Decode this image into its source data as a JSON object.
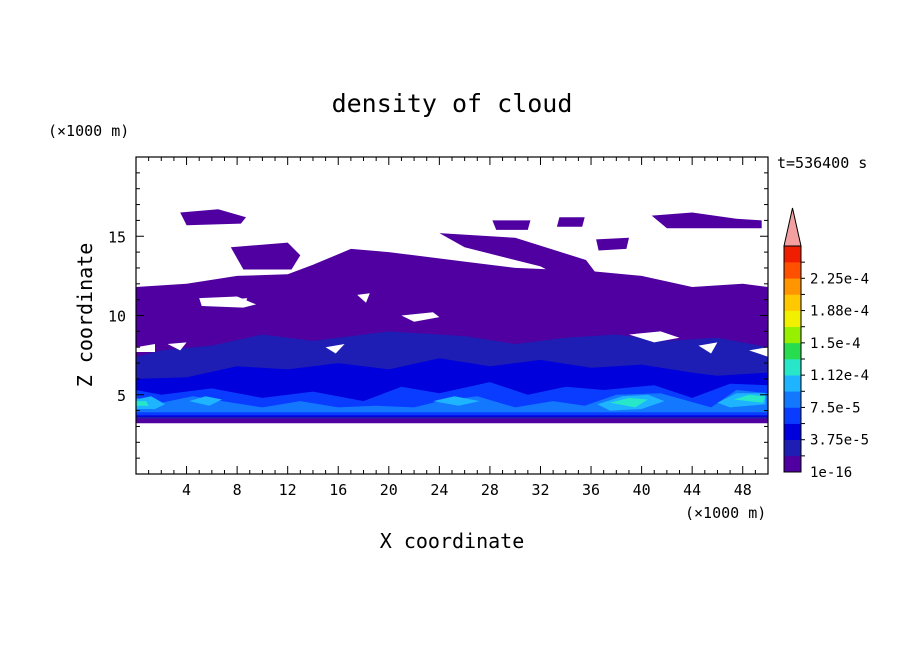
{
  "chart_data": {
    "type": "heatmap",
    "title": "density of cloud",
    "xlabel": "X coordinate",
    "ylabel": "Z coordinate",
    "x_unit": "(×1000 m)",
    "y_unit": "(×1000 m)",
    "time_label": "t=536400 s",
    "xlim": [
      0,
      50
    ],
    "ylim": [
      0,
      20
    ],
    "x_ticks": [
      4,
      8,
      12,
      16,
      20,
      24,
      28,
      32,
      36,
      40,
      44,
      48
    ],
    "x_tick_labels": [
      "4",
      "8",
      "12",
      "16",
      "20",
      "24",
      "28",
      "32",
      "36",
      "40",
      "44",
      "48"
    ],
    "y_ticks": [
      5,
      10,
      15
    ],
    "y_tick_labels": [
      "5",
      "10",
      "15"
    ],
    "colorbar": {
      "tick_labels": [
        "2.25e-4",
        "1.88e-4",
        "1.5e-4",
        "1.12e-4",
        "7.5e-5",
        "3.75e-5",
        "1e-16"
      ],
      "levels": [
        "1e-16",
        "1.875e-5",
        "3.75e-5",
        "5.625e-5",
        "7.5e-5",
        "9.375e-5",
        "1.12e-4",
        "1.31e-4",
        "1.5e-4",
        "1.69e-4",
        "1.88e-4",
        "2.06e-4",
        "2.25e-4",
        "2.44e-4"
      ],
      "colors": [
        "#5000a0",
        "#1e1eb4",
        "#0000dc",
        "#0a3cff",
        "#1478ff",
        "#1eb4ff",
        "#28e6c8",
        "#28dc50",
        "#96f000",
        "#f0f000",
        "#ffc800",
        "#ff9600",
        "#ff5000",
        "#f01e00"
      ],
      "over_color": "#f5a0a0"
    },
    "regions": [
      {
        "level": 0,
        "points": [
          [
            0,
            3.2
          ],
          [
            50,
            3.2
          ],
          [
            50,
            11.8
          ],
          [
            48,
            12
          ],
          [
            44,
            11.8
          ],
          [
            40,
            12.5
          ],
          [
            36,
            12.8
          ],
          [
            30,
            13
          ],
          [
            26,
            13.4
          ],
          [
            22,
            13.8
          ],
          [
            20,
            14
          ],
          [
            17,
            14.2
          ],
          [
            14,
            13.2
          ],
          [
            12,
            12.6
          ],
          [
            8,
            12.5
          ],
          [
            4,
            12
          ],
          [
            0,
            11.8
          ]
        ]
      },
      {
        "level": 0,
        "points": [
          [
            7.5,
            14.3
          ],
          [
            12,
            14.6
          ],
          [
            13,
            13.8
          ],
          [
            12.3,
            12.9
          ],
          [
            8.5,
            12.9
          ]
        ]
      },
      {
        "level": 0,
        "points": [
          [
            24,
            15.2
          ],
          [
            30,
            14.9
          ],
          [
            35.6,
            13.5
          ],
          [
            37.5,
            11.5
          ],
          [
            36.5,
            11.2
          ],
          [
            32,
            13.1
          ],
          [
            26,
            14.3
          ]
        ]
      },
      {
        "level": 0,
        "points": [
          [
            3.5,
            16.5
          ],
          [
            6.5,
            16.7
          ],
          [
            8.7,
            16.2
          ],
          [
            8.3,
            15.8
          ],
          [
            4,
            15.7
          ]
        ]
      },
      {
        "level": 0,
        "points": [
          [
            40.8,
            16.3
          ],
          [
            44,
            16.5
          ],
          [
            47.5,
            16.1
          ],
          [
            49.5,
            16
          ],
          [
            49.5,
            15.5
          ],
          [
            42,
            15.5
          ]
        ]
      },
      {
        "level": 0,
        "points": [
          [
            33.5,
            16.2
          ],
          [
            35.5,
            16.2
          ],
          [
            35.3,
            15.6
          ],
          [
            33.3,
            15.6
          ]
        ]
      },
      {
        "level": 0,
        "points": [
          [
            28.2,
            16
          ],
          [
            31.2,
            16
          ],
          [
            31,
            15.4
          ],
          [
            28.5,
            15.4
          ]
        ]
      },
      {
        "level": 0,
        "points": [
          [
            36.4,
            14.8
          ],
          [
            39,
            14.9
          ],
          [
            38.8,
            14.2
          ],
          [
            36.6,
            14.1
          ]
        ]
      },
      {
        "level": 1,
        "points": [
          [
            0,
            3.5
          ],
          [
            50,
            3.5
          ],
          [
            50,
            8
          ],
          [
            46,
            8.6
          ],
          [
            42,
            8.4
          ],
          [
            38,
            8.8
          ],
          [
            34,
            8.6
          ],
          [
            30,
            8.2
          ],
          [
            26,
            8.7
          ],
          [
            20,
            9
          ],
          [
            14,
            8.4
          ],
          [
            10,
            8.8
          ],
          [
            6,
            8.1
          ],
          [
            2,
            7.8
          ],
          [
            0,
            7.4
          ]
        ]
      },
      {
        "level": 2,
        "points": [
          [
            0,
            3.6
          ],
          [
            50,
            3.6
          ],
          [
            50,
            6.4
          ],
          [
            46,
            6.2
          ],
          [
            44,
            6.4
          ],
          [
            40,
            6.9
          ],
          [
            36,
            6.7
          ],
          [
            32,
            7.2
          ],
          [
            28,
            6.8
          ],
          [
            24,
            7.3
          ],
          [
            20,
            6.6
          ],
          [
            16,
            7
          ],
          [
            12,
            6.6
          ],
          [
            8,
            6.8
          ],
          [
            4,
            6.1
          ],
          [
            0,
            6
          ]
        ]
      },
      {
        "level": 3,
        "points": [
          [
            0,
            3.7
          ],
          [
            50,
            3.7
          ],
          [
            50,
            5.6
          ],
          [
            47,
            5.7
          ],
          [
            44,
            4.8
          ],
          [
            41,
            5.6
          ],
          [
            37,
            5.3
          ],
          [
            34,
            5.5
          ],
          [
            31,
            5
          ],
          [
            28,
            5.8
          ],
          [
            24,
            5.1
          ],
          [
            21,
            5.5
          ],
          [
            18,
            4.6
          ],
          [
            14,
            5.2
          ],
          [
            10,
            4.8
          ],
          [
            6,
            5.4
          ],
          [
            2,
            5
          ],
          [
            0,
            5.3
          ]
        ]
      },
      {
        "level": 4,
        "points": [
          [
            0,
            3.9
          ],
          [
            50,
            3.9
          ],
          [
            50,
            5.1
          ],
          [
            47.5,
            5.3
          ],
          [
            45.5,
            4.2
          ],
          [
            41.5,
            5.1
          ],
          [
            38,
            5
          ],
          [
            35.5,
            4.3
          ],
          [
            33,
            4.6
          ],
          [
            30,
            4.2
          ],
          [
            27,
            4.9
          ],
          [
            24,
            4.6
          ],
          [
            22,
            4.2
          ],
          [
            19,
            4.3
          ],
          [
            16,
            4.2
          ],
          [
            13,
            4.6
          ],
          [
            10,
            4.2
          ],
          [
            6,
            4.7
          ],
          [
            4.5,
            4.9
          ],
          [
            2,
            4.5
          ],
          [
            0,
            4.8
          ]
        ]
      },
      {
        "level": 5,
        "points": [
          [
            36.5,
            4.4
          ],
          [
            38.5,
            4.9
          ],
          [
            40.5,
            5
          ],
          [
            41.8,
            4.6
          ],
          [
            40,
            4.1
          ],
          [
            37.5,
            4
          ]
        ]
      },
      {
        "level": 6,
        "points": [
          [
            37.5,
            4.5
          ],
          [
            39,
            4.8
          ],
          [
            40.5,
            4.7
          ],
          [
            39.5,
            4.2
          ]
        ]
      },
      {
        "level": 5,
        "points": [
          [
            46,
            4.5
          ],
          [
            47.5,
            5.1
          ],
          [
            49.8,
            5.1
          ],
          [
            49.8,
            4.4
          ],
          [
            47,
            4.2
          ]
        ]
      },
      {
        "level": 6,
        "points": [
          [
            47.3,
            4.7
          ],
          [
            48.5,
            5
          ],
          [
            49.8,
            4.9
          ],
          [
            49.6,
            4.5
          ]
        ]
      },
      {
        "level": 5,
        "points": [
          [
            0,
            4.1
          ],
          [
            0,
            4.7
          ],
          [
            1.2,
            4.9
          ],
          [
            2.3,
            4.4
          ],
          [
            1.5,
            4.1
          ]
        ]
      },
      {
        "level": 6,
        "points": [
          [
            0,
            4.3
          ],
          [
            0,
            4.6
          ],
          [
            0.8,
            4.6
          ],
          [
            1,
            4.3
          ]
        ]
      },
      {
        "level": 5,
        "points": [
          [
            4.2,
            4.6
          ],
          [
            5.5,
            4.9
          ],
          [
            6.8,
            4.7
          ],
          [
            5.8,
            4.3
          ]
        ]
      },
      {
        "level": 5,
        "points": [
          [
            23.5,
            4.6
          ],
          [
            25.2,
            4.9
          ],
          [
            27.2,
            4.6
          ],
          [
            25.5,
            4.3
          ]
        ]
      }
    ],
    "clear_areas": [
      {
        "points": [
          [
            5,
            11.1
          ],
          [
            8,
            11.2
          ],
          [
            9.5,
            10.7
          ],
          [
            8.5,
            10.5
          ],
          [
            5.2,
            10.6
          ]
        ]
      },
      {
        "points": [
          [
            17.5,
            11.3
          ],
          [
            18.5,
            11.4
          ],
          [
            18.2,
            10.8
          ]
        ]
      },
      {
        "points": [
          [
            21,
            10
          ],
          [
            23.5,
            10.2
          ],
          [
            24,
            9.9
          ],
          [
            22,
            9.6
          ]
        ]
      },
      {
        "points": [
          [
            2.5,
            8.2
          ],
          [
            4,
            8.3
          ],
          [
            3.5,
            7.8
          ]
        ]
      },
      {
        "points": [
          [
            0,
            8
          ],
          [
            1.5,
            8.2
          ],
          [
            1.5,
            7.7
          ],
          [
            0,
            7.7
          ]
        ]
      },
      {
        "points": [
          [
            15,
            8
          ],
          [
            16.5,
            8.2
          ],
          [
            15.8,
            7.6
          ]
        ]
      },
      {
        "points": [
          [
            39,
            8.8
          ],
          [
            41.5,
            9
          ],
          [
            43,
            8.6
          ],
          [
            41,
            8.3
          ]
        ]
      },
      {
        "points": [
          [
            44.5,
            8.1
          ],
          [
            46,
            8.3
          ],
          [
            45.5,
            7.6
          ]
        ]
      },
      {
        "points": [
          [
            48.5,
            7.8
          ],
          [
            50,
            8
          ],
          [
            50,
            7.4
          ]
        ]
      },
      {
        "points": [
          [
            7.5,
            11
          ],
          [
            8.8,
            11.1
          ],
          [
            8.6,
            10.6
          ]
        ]
      }
    ]
  }
}
